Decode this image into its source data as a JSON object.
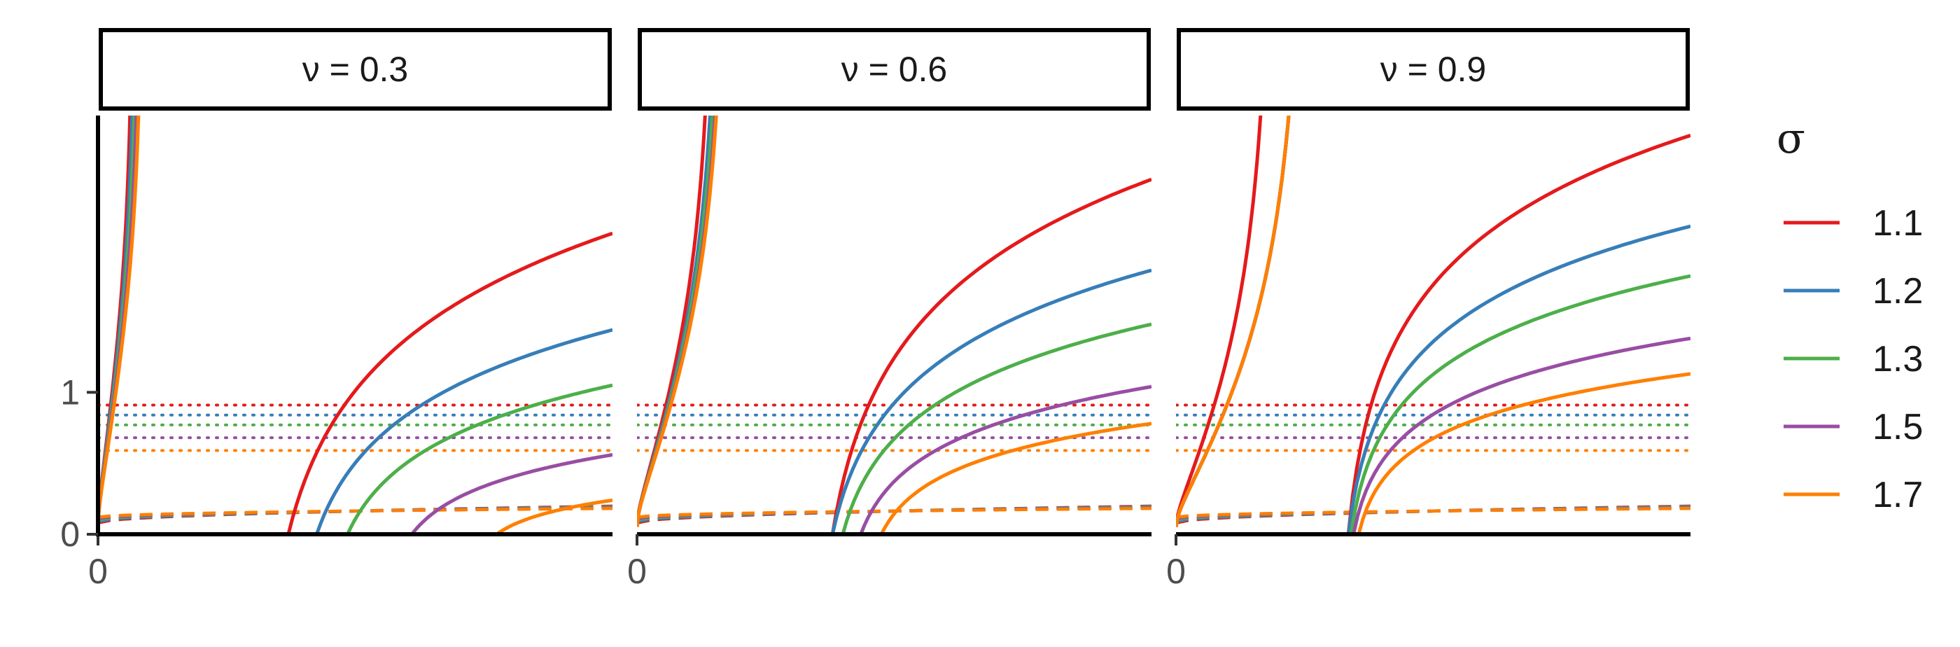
{
  "chart_data": {
    "type": "line",
    "facet_var": "ν",
    "panels": [
      {
        "label": "ν = 0.3",
        "nu": 0.3
      },
      {
        "label": "ν = 0.6",
        "nu": 0.6
      },
      {
        "label": "ν = 0.9",
        "nu": 0.9
      }
    ],
    "x_tick_labels": [
      "0"
    ],
    "y_tick_labels": [
      "0",
      "1"
    ],
    "ylim": [
      0,
      2.95
    ],
    "xlim": [
      0,
      1
    ],
    "legend": {
      "title": "σ",
      "placement": "right",
      "entries": [
        {
          "label": "1.1",
          "sigma": 1.1,
          "color": "#E41A1C"
        },
        {
          "label": "1.2",
          "sigma": 1.2,
          "color": "#377EB8"
        },
        {
          "label": "1.3",
          "sigma": 1.3,
          "color": "#4DAF4A"
        },
        {
          "label": "1.5",
          "sigma": 1.5,
          "color": "#984EA3"
        },
        {
          "label": "1.7",
          "sigma": 1.7,
          "color": "#FF7F00"
        }
      ]
    },
    "reference_levels_dotted": [
      0.91,
      0.84,
      0.77,
      0.68,
      0.59
    ],
    "dashed_curve_levels": {
      "start": 0.1,
      "end": 0.19
    },
    "series": [
      {
        "name": "1.1",
        "k": 1.1,
        "left_break": [
          0.075,
          0.165,
          0.21
        ],
        "right_root": [
          0.37,
          0.38,
          0.335
        ],
        "right_end": [
          2.12,
          2.5,
          2.81
        ]
      },
      {
        "name": "1.2",
        "k": 1.2,
        "left_break": [
          0.08,
          0.177,
          0.28
        ],
        "right_root": [
          0.425,
          0.38,
          0.335
        ],
        "right_end": [
          1.44,
          1.86,
          2.17
        ]
      },
      {
        "name": "1.3",
        "k": 1.3,
        "left_break": [
          0.085,
          0.183,
          0.28
        ],
        "right_root": [
          0.485,
          0.4,
          0.34
        ],
        "right_end": [
          1.05,
          1.48,
          1.82
        ]
      },
      {
        "name": "1.5",
        "k": 1.5,
        "left_break": [
          0.09,
          0.189,
          0.28
        ],
        "right_root": [
          0.61,
          0.435,
          0.345
        ],
        "right_end": [
          0.56,
          1.04,
          1.38
        ]
      },
      {
        "name": "1.7",
        "k": 1.7,
        "left_break": [
          0.095,
          0.192,
          0.28
        ],
        "right_root": [
          0.775,
          0.475,
          0.355
        ],
        "right_end": [
          0.24,
          0.78,
          1.13
        ]
      }
    ]
  }
}
